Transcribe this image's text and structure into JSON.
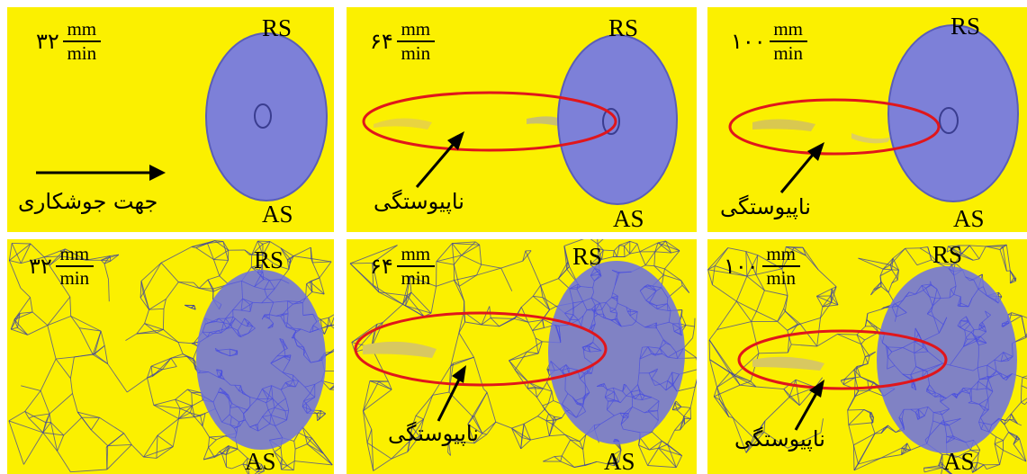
{
  "colors": {
    "background": "#fbf000",
    "tool": "#7d80d8",
    "mesh_line": "#3a3fa0",
    "highlight": "#e0161b",
    "arrow": "#000000"
  },
  "labels": {
    "retreating_side": "RS",
    "advancing_side": "AS",
    "unit_top": "mm",
    "unit_bottom": "min",
    "welding_direction": "جهت جوشکاری",
    "discontinuity": "ناپیوستگی"
  },
  "panels": [
    {
      "speed": "۳۲",
      "mesh": false,
      "defect": false,
      "direction_arrow": true
    },
    {
      "speed": "۶۴",
      "mesh": false,
      "defect": true,
      "direction_arrow": false
    },
    {
      "speed": "۱۰۰",
      "mesh": false,
      "defect": true,
      "direction_arrow": false
    },
    {
      "speed": "۳۲",
      "mesh": true,
      "defect": false,
      "direction_arrow": false
    },
    {
      "speed": "۶۴",
      "mesh": true,
      "defect": true,
      "direction_arrow": false
    },
    {
      "speed": "۱۰۰",
      "mesh": true,
      "defect": true,
      "direction_arrow": false
    }
  ]
}
